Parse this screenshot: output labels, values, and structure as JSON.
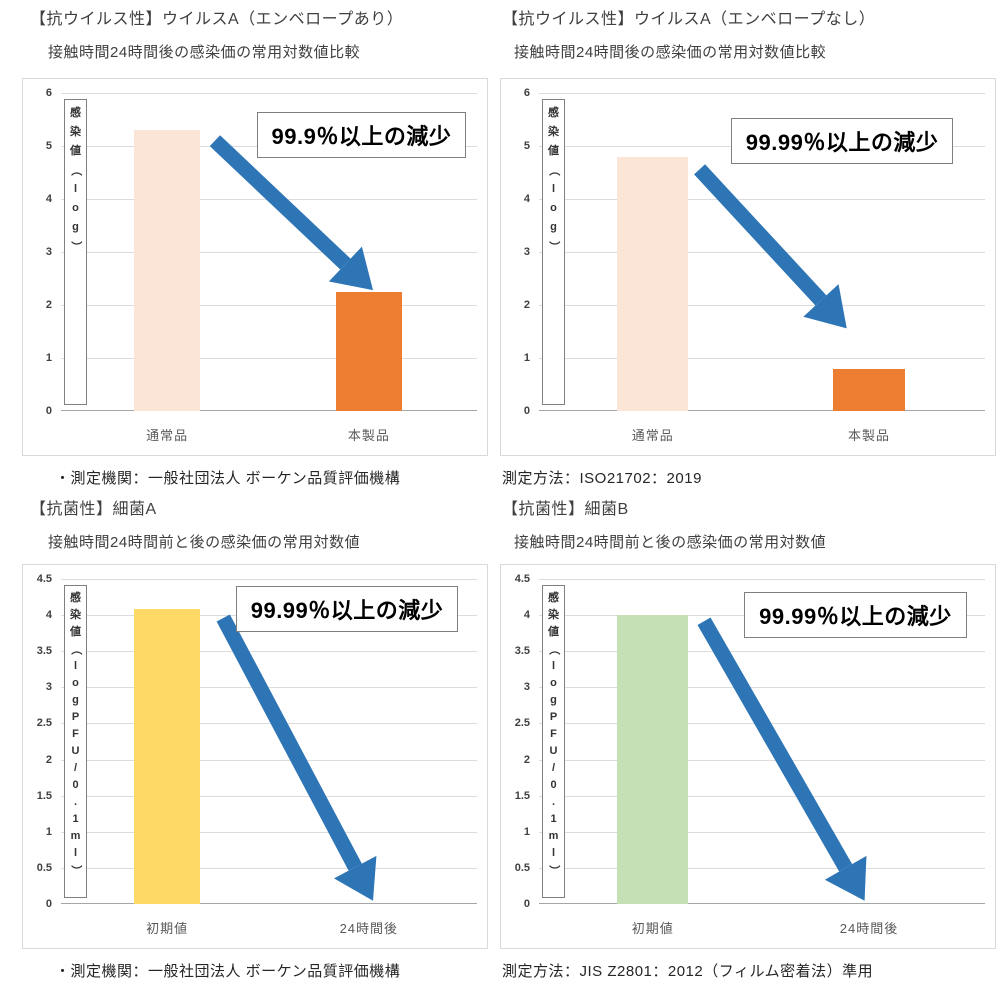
{
  "colors": {
    "arrow": "#2e75b6",
    "gridline": "#dcdcdc",
    "baseline": "#a6a6a6",
    "tick_text": "#404040",
    "frame_border": "#d9d9d9",
    "annotation_border": "#7f7f7f"
  },
  "chart_data": [
    {
      "id": "antiviral-virus-a-enveloped",
      "type": "bar",
      "title": "【抗ウイルス性】ウイルスA（エンベロープあり）",
      "subtitle": "接触時間24時間後の感染価の常用対数値比較",
      "ylabel": "感染値（log）",
      "categories": [
        "通常品",
        "本製品"
      ],
      "values": [
        5.3,
        2.25
      ],
      "bar_colors": [
        "#fbe5d6",
        "#ed7d31"
      ],
      "ylim": [
        0,
        6
      ],
      "ytick_step": 1,
      "grid": true,
      "legend": false,
      "annotation": "99.9％以上の減少",
      "annotation_pos": {
        "left": 0.47,
        "top": 0.06
      },
      "arrow": {
        "x1": 0.37,
        "y1": 0.15,
        "x2": 0.75,
        "y2": 0.62
      },
      "footer": "・測定機関：一般社団法人 ボーケン品質評価機構"
    },
    {
      "id": "antiviral-virus-a-nonenveloped",
      "type": "bar",
      "title": "【抗ウイルス性】ウイルスA（エンベロープなし）",
      "subtitle": "接触時間24時間後の感染価の常用対数値比較",
      "ylabel": "感染値（log）",
      "categories": [
        "通常品",
        "本製品"
      ],
      "values": [
        4.8,
        0.8
      ],
      "bar_colors": [
        "#fbe5d6",
        "#ed7d31"
      ],
      "ylim": [
        0,
        6
      ],
      "ytick_step": 1,
      "grid": true,
      "legend": false,
      "annotation": "99.99％以上の減少",
      "annotation_pos": {
        "left": 0.43,
        "top": 0.08
      },
      "arrow": {
        "x1": 0.36,
        "y1": 0.24,
        "x2": 0.69,
        "y2": 0.74
      },
      "footer": "測定方法：ISO21702：2019"
    },
    {
      "id": "antibacterial-bacteria-a",
      "type": "bar",
      "title": "【抗菌性】細菌A",
      "subtitle": "接触時間24時間前と後の感染価の常用対数値",
      "ylabel": "感染値（log PFU/0.1ml）",
      "categories": [
        "初期値",
        "24時間後"
      ],
      "values": [
        4.08,
        0
      ],
      "bar_colors": [
        "#ffd966",
        "#ffd966"
      ],
      "ylim": [
        0,
        4.5
      ],
      "ytick_step": 0.5,
      "grid": true,
      "legend": false,
      "annotation": "99.99％以上の減少",
      "annotation_pos": {
        "left": 0.42,
        "top": 0.02
      },
      "arrow": {
        "x1": 0.39,
        "y1": 0.12,
        "x2": 0.75,
        "y2": 0.99
      },
      "footer": "・測定機関：一般社団法人 ボーケン品質評価機構"
    },
    {
      "id": "antibacterial-bacteria-b",
      "type": "bar",
      "title": "【抗菌性】細菌B",
      "subtitle": "接触時間24時間前と後の感染価の常用対数値",
      "ylabel": "感染値（log PFU/0.1ml）",
      "categories": [
        "初期値",
        "24時間後"
      ],
      "values": [
        4.0,
        0
      ],
      "bar_colors": [
        "#c5e0b4",
        "#c5e0b4"
      ],
      "ylim": [
        0,
        4.5
      ],
      "ytick_step": 0.5,
      "grid": true,
      "legend": false,
      "annotation": "99.99％以上の減少",
      "annotation_pos": {
        "left": 0.46,
        "top": 0.04
      },
      "arrow": {
        "x1": 0.37,
        "y1": 0.13,
        "x2": 0.73,
        "y2": 0.99
      },
      "footer": "測定方法：JIS Z2801：2012（フィルム密着法）準用"
    }
  ]
}
